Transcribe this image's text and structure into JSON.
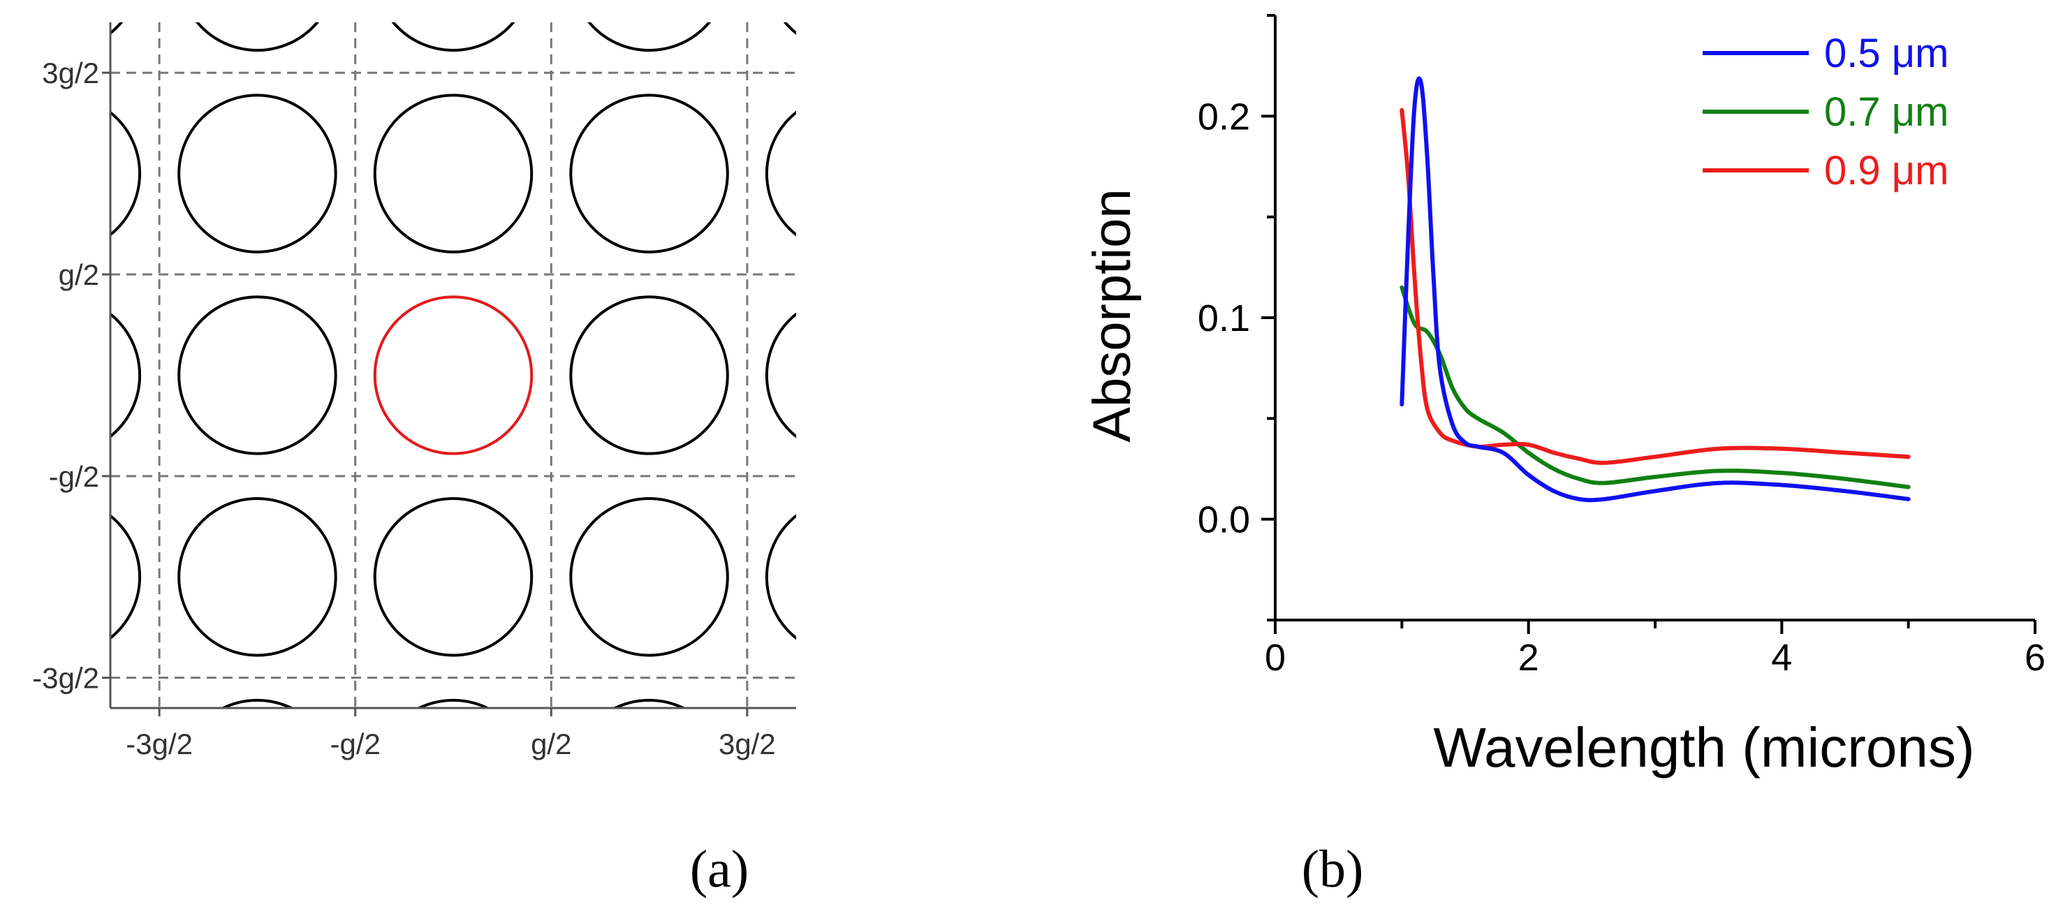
{
  "panels": {
    "a": {
      "label": "(a)"
    },
    "b": {
      "label": "(b)"
    }
  },
  "chart_data": [
    {
      "type": "diagram",
      "description_kind": "periodic-lattice-of-circles",
      "x_ticks": [
        "-3g/2",
        "-g/2",
        "g/2",
        "3g/2"
      ],
      "y_ticks": [
        "3g/2",
        "g/2",
        "-g/2",
        "-3g/2"
      ],
      "x_units": [
        -1.5,
        -0.5,
        0.5,
        1.5
      ],
      "y_units": [
        1.5,
        0.5,
        -0.5,
        -1.5
      ],
      "x_range": [
        -1.75,
        1.75
      ],
      "y_range": [
        -1.65,
        1.75
      ],
      "circle_centers": [
        -2,
        -1,
        0,
        1,
        2
      ],
      "circle_radius": 0.4,
      "highlight_center": [
        0,
        0
      ],
      "circle_color": "#000000",
      "highlight_color": "#e41a1c",
      "grid": "dashed"
    },
    {
      "type": "line",
      "xlabel": "Wavelength (microns)",
      "ylabel": "Absorption",
      "xlim": [
        0,
        6
      ],
      "ylim": [
        -0.05,
        0.25
      ],
      "x_ticks": [
        0,
        2,
        4,
        6
      ],
      "y_ticks": [
        0.0,
        0.1,
        0.2
      ],
      "x_tick_labels": [
        "0",
        "2",
        "4",
        "6"
      ],
      "y_tick_labels": [
        "0.0",
        "0.1",
        "0.2"
      ],
      "legend_position": "top-right",
      "series": [
        {
          "name": "0.5 μm",
          "color": "#1010f0",
          "x": [
            1.0,
            1.05,
            1.1,
            1.15,
            1.2,
            1.25,
            1.3,
            1.4,
            1.5,
            1.6,
            1.8,
            2.0,
            2.2,
            2.4,
            2.6,
            3.0,
            3.5,
            4.0,
            4.5,
            5.0
          ],
          "y": [
            0.057,
            0.14,
            0.205,
            0.217,
            0.18,
            0.12,
            0.075,
            0.047,
            0.038,
            0.036,
            0.033,
            0.022,
            0.014,
            0.01,
            0.01,
            0.014,
            0.018,
            0.017,
            0.014,
            0.01
          ]
        },
        {
          "name": "0.7 μm",
          "color": "#128012",
          "x": [
            1.0,
            1.1,
            1.2,
            1.3,
            1.4,
            1.5,
            1.6,
            1.8,
            2.0,
            2.2,
            2.4,
            2.6,
            3.0,
            3.5,
            4.0,
            4.5,
            5.0
          ],
          "y": [
            0.115,
            0.097,
            0.093,
            0.082,
            0.065,
            0.055,
            0.05,
            0.043,
            0.033,
            0.025,
            0.02,
            0.018,
            0.021,
            0.024,
            0.023,
            0.02,
            0.016
          ]
        },
        {
          "name": "0.9 μm",
          "color": "#ee1c1c",
          "x": [
            1.0,
            1.05,
            1.1,
            1.15,
            1.2,
            1.3,
            1.4,
            1.6,
            1.8,
            2.0,
            2.2,
            2.4,
            2.6,
            3.0,
            3.5,
            4.0,
            4.5,
            5.0
          ],
          "y": [
            0.203,
            0.17,
            0.12,
            0.08,
            0.055,
            0.043,
            0.039,
            0.036,
            0.037,
            0.037,
            0.033,
            0.03,
            0.028,
            0.031,
            0.035,
            0.035,
            0.033,
            0.031
          ]
        }
      ]
    }
  ]
}
